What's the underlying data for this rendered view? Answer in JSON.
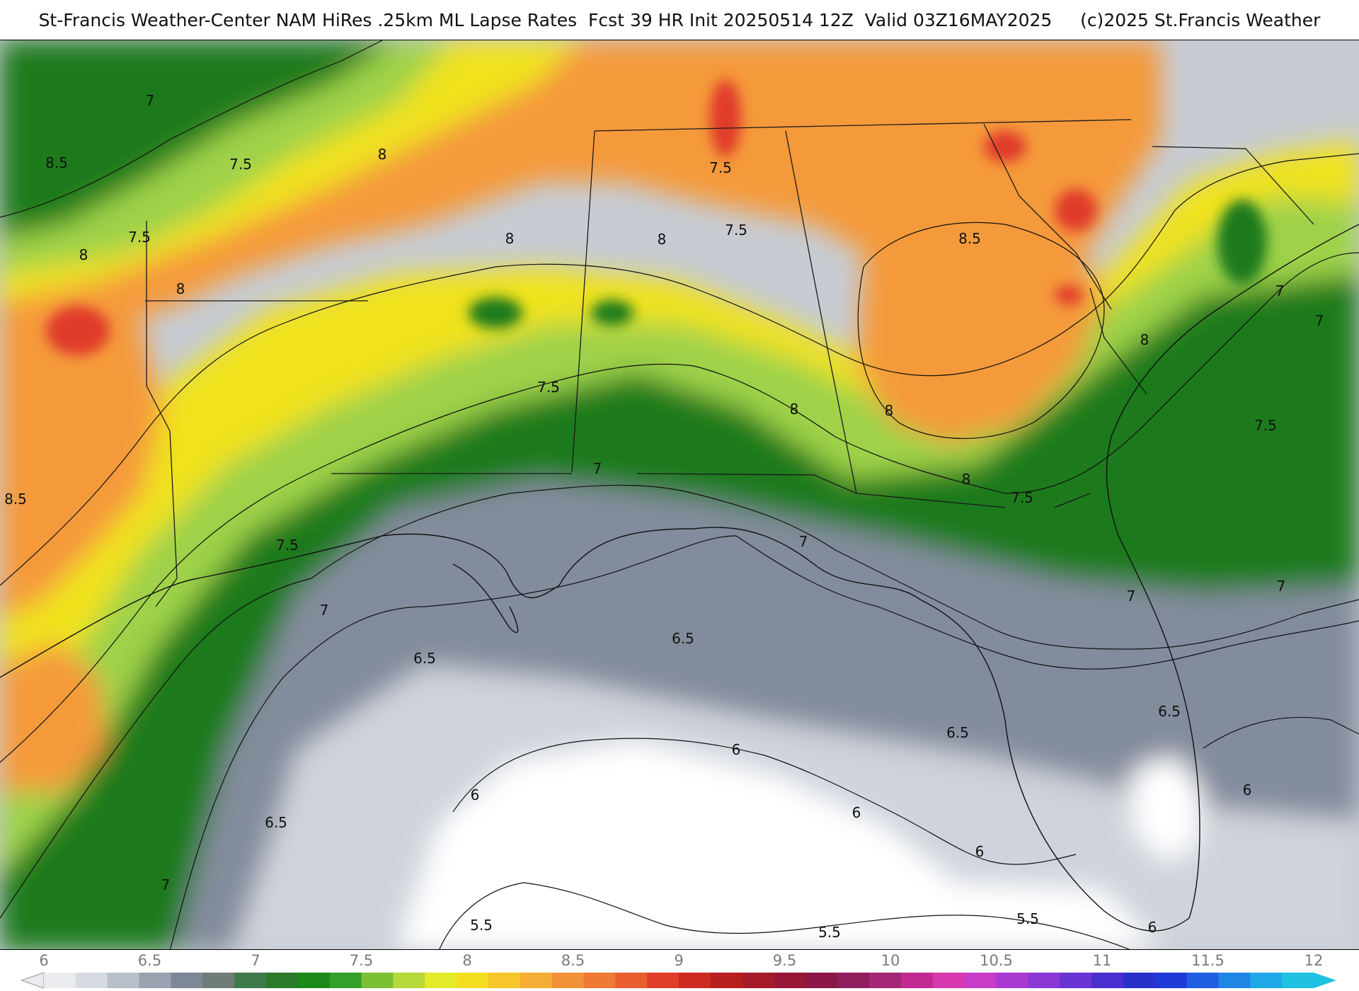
{
  "header": {
    "title_left": "St-Francis Weather-Center NAM HiRes .25km ML Lapse Rates  Fcst 39 HR Init 20250514 12Z  Valid 03Z16MAY2025",
    "title_right": "(c)2025 St.Francis Weather"
  },
  "colors": {
    "lapse_5_5": "#ffffff",
    "lapse_6": "#cfd4dc",
    "lapse_6_5": "#838c9c",
    "lapse_7": "#1f7a1f",
    "lapse_7_5": "#9fd24a",
    "lapse_8": "#f0e21a",
    "lapse_8_5": "#f59a3a",
    "lapse_9": "#e03a2a"
  },
  "map": {
    "contour_labels": [
      "7",
      "7.5",
      "8",
      "8.5",
      "7.5",
      "8",
      "8",
      "8.5",
      "8",
      "8",
      "7.5",
      "7.5",
      "7.5",
      "8",
      "8",
      "8.5",
      "8",
      "7.5",
      "7",
      "7.5",
      "7",
      "7",
      "6.5",
      "6.5",
      "6.5",
      "7",
      "6",
      "6",
      "6.5",
      "6.5",
      "5.5",
      "5.5",
      "5.5",
      "6",
      "6",
      "6",
      "6",
      "7",
      "7",
      "8",
      "7",
      "7.5",
      "7"
    ]
  },
  "colorbar": {
    "ticks": [
      "6",
      "6.5",
      "7",
      "7.5",
      "8",
      "8.5",
      "9",
      "9.5",
      "10",
      "10.5",
      "11",
      "11.5",
      "12"
    ],
    "steps": [
      "#e9ebef",
      "#d6dae1",
      "#b9bfc9",
      "#9aa2b0",
      "#7e8796",
      "#6f7d7a",
      "#3f7a4a",
      "#2a7a2a",
      "#1b8a1b",
      "#33a02a",
      "#7cc034",
      "#b6d93a",
      "#e3ea2a",
      "#f3df1f",
      "#f6c62a",
      "#f5ad35",
      "#f29238",
      "#ee7a35",
      "#ea5e2f",
      "#e03e29",
      "#cc2a20",
      "#b81e1e",
      "#a61a2a",
      "#981636",
      "#8c1848",
      "#901e5e",
      "#a52677",
      "#c12a92",
      "#d838ad",
      "#c83cc8",
      "#a83ad2",
      "#8a38d6",
      "#6a34d4",
      "#4a30d0",
      "#2a30cc",
      "#1f3ad8",
      "#1f5ee0",
      "#1f86e6",
      "#1fa8e6",
      "#1fc2e0"
    ]
  }
}
